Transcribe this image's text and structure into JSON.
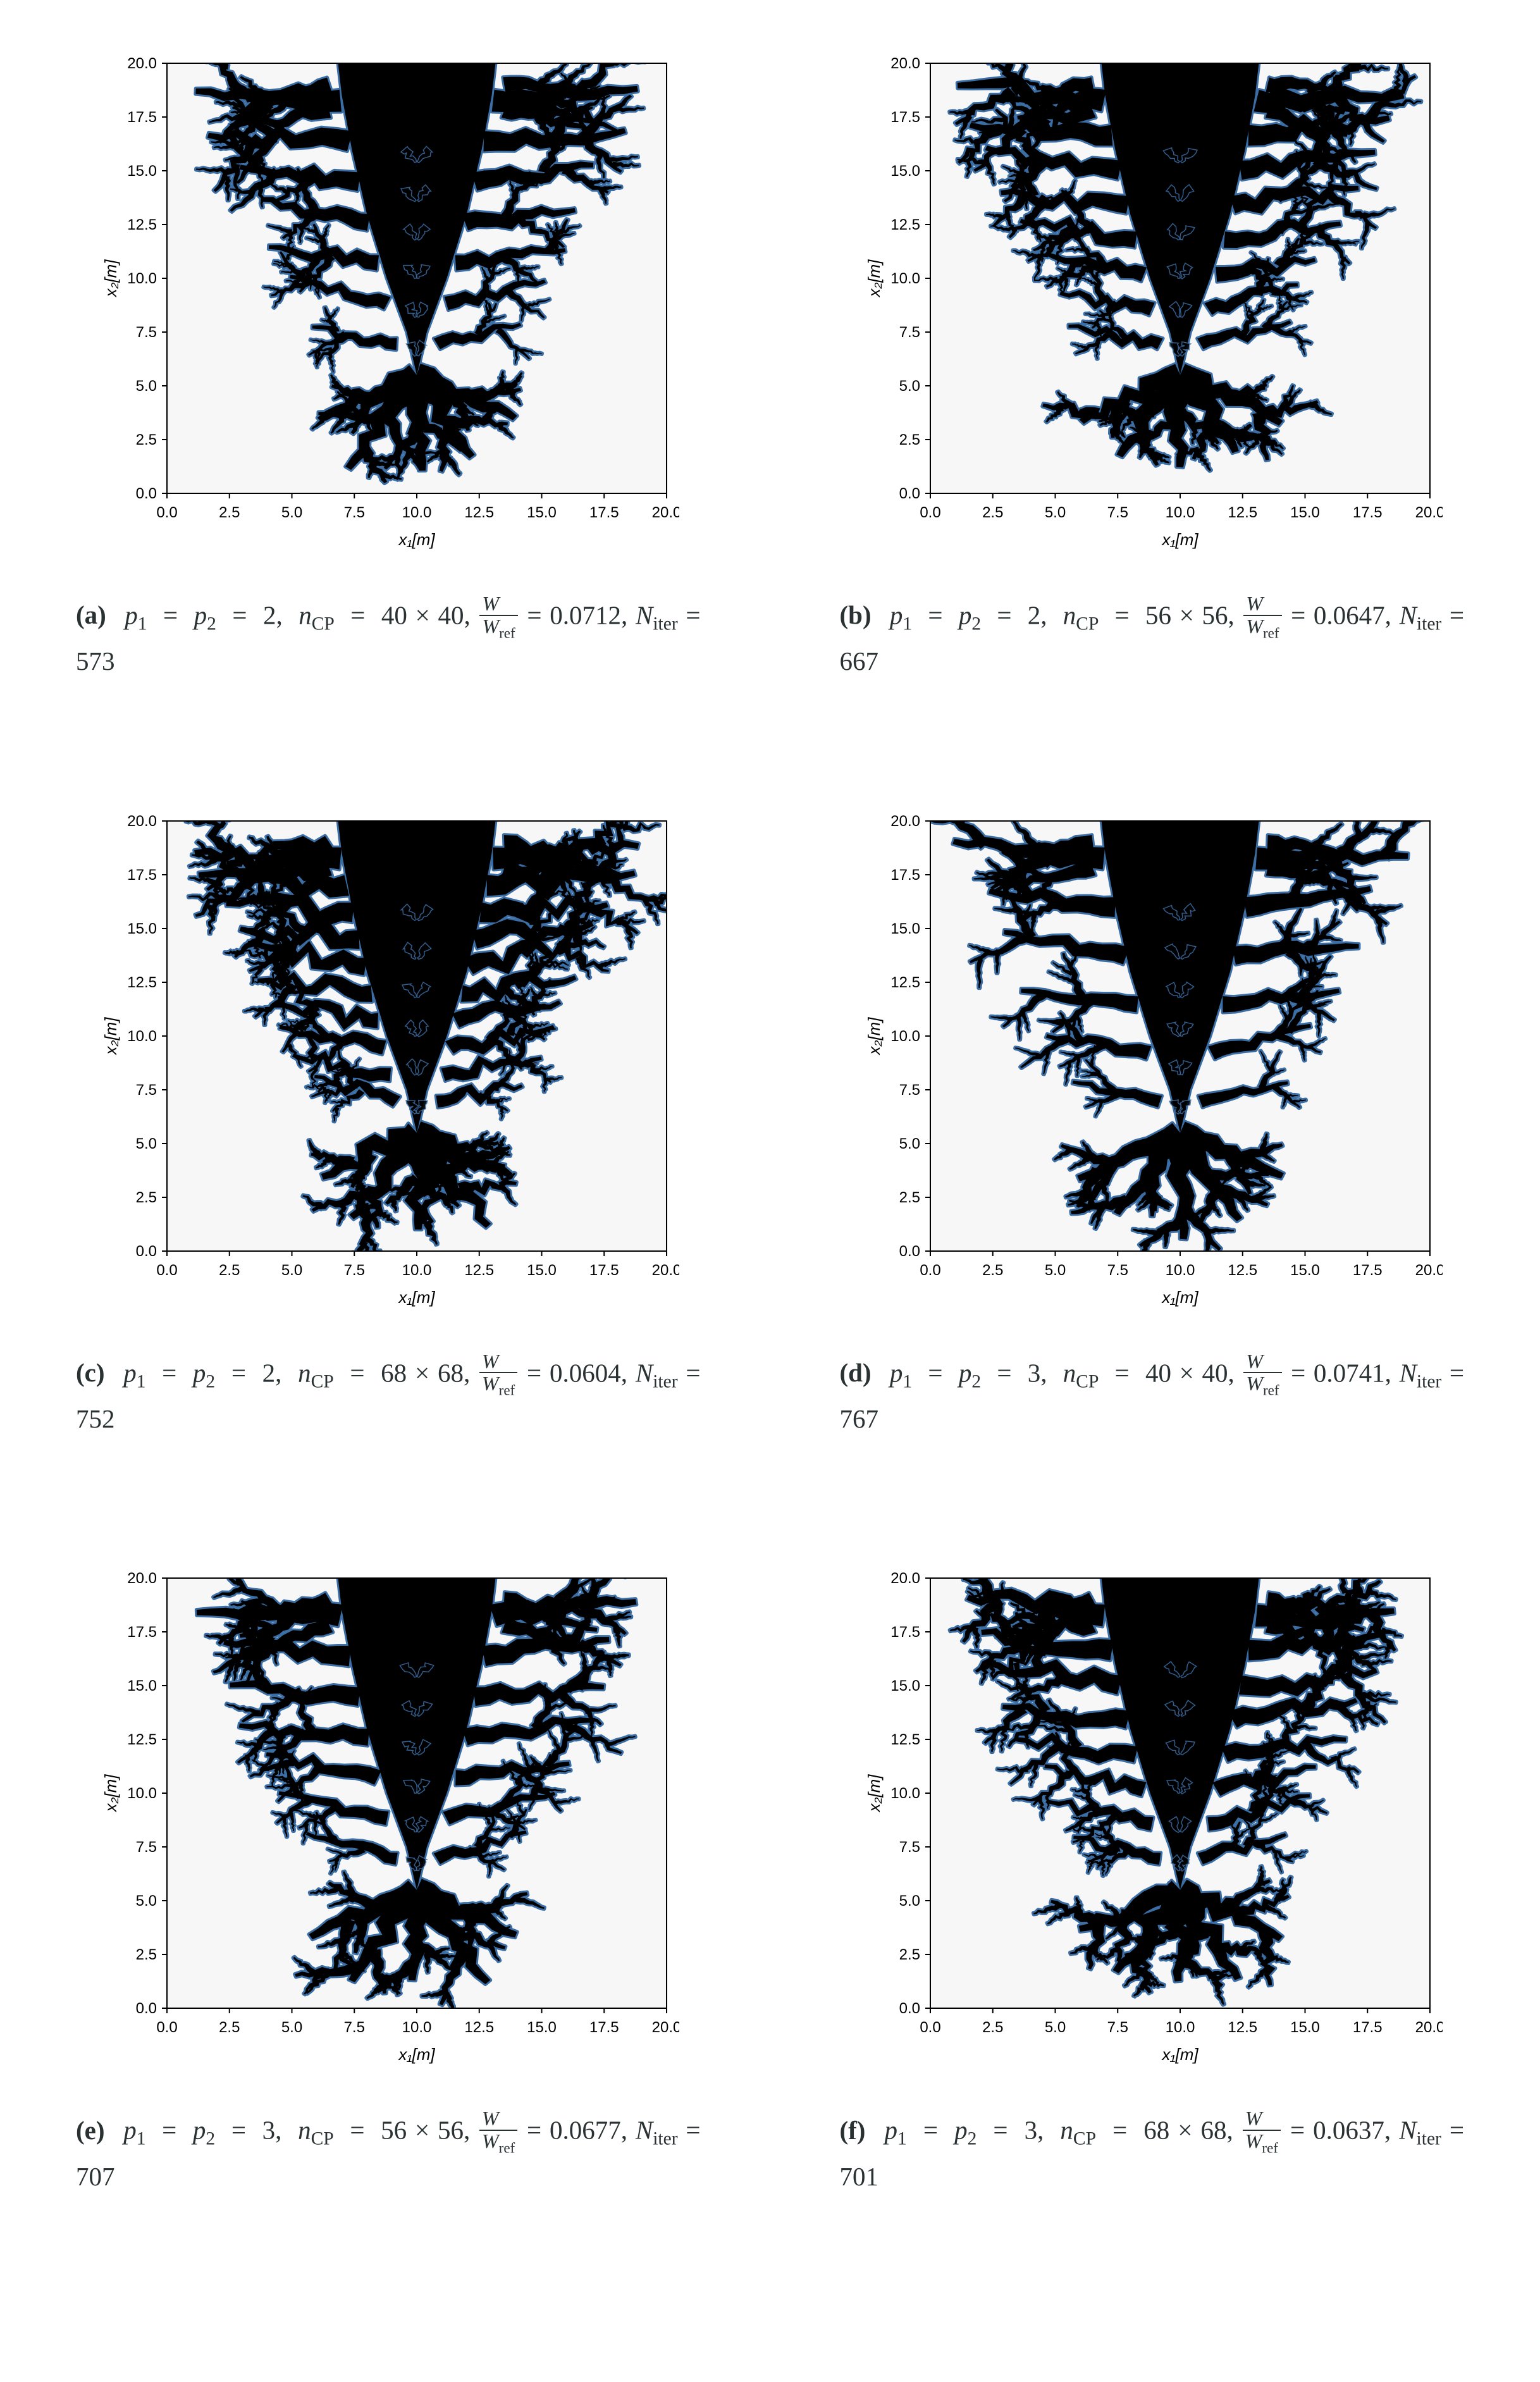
{
  "axis": {
    "x_label": "x₁[m]",
    "y_label": "x₂[m]",
    "xlim": [
      0.0,
      20.0
    ],
    "ylim": [
      0.0,
      20.0
    ],
    "x_ticks": [
      0.0,
      2.5,
      5.0,
      7.5,
      10.0,
      12.5,
      15.0,
      17.5,
      20.0
    ],
    "y_ticks": [
      0.0,
      2.5,
      5.0,
      7.5,
      10.0,
      12.5,
      15.0,
      17.5,
      20.0
    ],
    "tick_fontsize_pt": 18,
    "label_fontsize_pt": 20,
    "tick_color": "#000000",
    "label_color": "#000000",
    "frame_color": "#000000",
    "background_color": "#ffffff"
  },
  "caption_fontsize_pt": 31,
  "caption_color": "#293133",
  "dendrite_style": {
    "fill_color": "#000000",
    "outline_color": "#3b6ea5",
    "outline_width": 3,
    "background_wash": "#f7f7f8"
  },
  "panels": [
    {
      "tag": "(a)",
      "p1": 2,
      "p2": 2,
      "nCP": "40 × 40",
      "W_over_Wref": 0.0712,
      "Niter": 573,
      "branch_spacing": 2.6,
      "side_branches": 7,
      "wobble": 0.018,
      "seed": 11
    },
    {
      "tag": "(b)",
      "p1": 2,
      "p2": 2,
      "nCP": "56 × 56",
      "W_over_Wref": 0.0647,
      "Niter": 667,
      "branch_spacing": 2.1,
      "side_branches": 8,
      "wobble": 0.022,
      "seed": 22
    },
    {
      "tag": "(c)",
      "p1": 2,
      "p2": 2,
      "nCP": "68 × 68",
      "W_over_Wref": 0.0604,
      "Niter": 752,
      "branch_spacing": 1.7,
      "side_branches": 10,
      "wobble": 0.028,
      "seed": 33
    },
    {
      "tag": "(d)",
      "p1": 3,
      "p2": 3,
      "nCP": "40 × 40",
      "W_over_Wref": 0.0741,
      "Niter": 767,
      "branch_spacing": 3.0,
      "side_branches": 6,
      "wobble": 0.012,
      "seed": 44
    },
    {
      "tag": "(e)",
      "p1": 3,
      "p2": 3,
      "nCP": "56 × 56",
      "W_over_Wref": 0.0677,
      "Niter": 707,
      "branch_spacing": 2.4,
      "side_branches": 7,
      "wobble": 0.016,
      "seed": 55
    },
    {
      "tag": "(f)",
      "p1": 3,
      "p2": 3,
      "nCP": "68 × 68",
      "W_over_Wref": 0.0637,
      "Niter": 701,
      "branch_spacing": 2.0,
      "side_branches": 8,
      "wobble": 0.024,
      "seed": 66
    }
  ]
}
